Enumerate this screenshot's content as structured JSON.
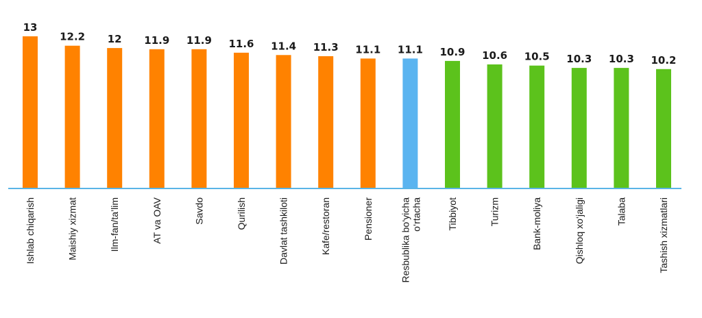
{
  "chart_data": {
    "type": "bar",
    "categories": [
      "Ishlab chiqarish",
      "Maishiy xizmat",
      "Ilm-fan/ta’lim",
      "AT va OAV",
      "Savdo",
      "Qurilish",
      "Davlat tashkiloti",
      "Kafe/restoran",
      "Pensioner",
      "Resbublika bo‘yicha o‘rtacha",
      "Tibbiyot",
      "Turizm",
      "Bank-moliya",
      "Qishloq xo‘jaligi",
      "Talaba",
      "Tashish xizmatlari"
    ],
    "values": [
      13,
      12.2,
      12,
      11.9,
      11.9,
      11.6,
      11.4,
      11.3,
      11.1,
      11.1,
      10.9,
      10.6,
      10.5,
      10.3,
      10.3,
      10.2
    ],
    "value_labels": [
      "13",
      "12.2",
      "12",
      "11.9",
      "11.9",
      "11.6",
      "11.4",
      "11.3",
      "11.1",
      "11.1",
      "10.9",
      "10.6",
      "10.5",
      "10.3",
      "10.3",
      "10.2"
    ],
    "bar_colors": [
      "#ff8200",
      "#ff8200",
      "#ff8200",
      "#ff8200",
      "#ff8200",
      "#ff8200",
      "#ff8200",
      "#ff8200",
      "#ff8200",
      "#5ab4f0",
      "#5cc21c",
      "#5cc21c",
      "#5cc21c",
      "#5cc21c",
      "#5cc21c",
      "#5cc21c"
    ],
    "title": "",
    "xlabel": "",
    "ylabel": "",
    "ylim": [
      0,
      13
    ],
    "grid": false,
    "axis_color": "#5ab4e6"
  }
}
